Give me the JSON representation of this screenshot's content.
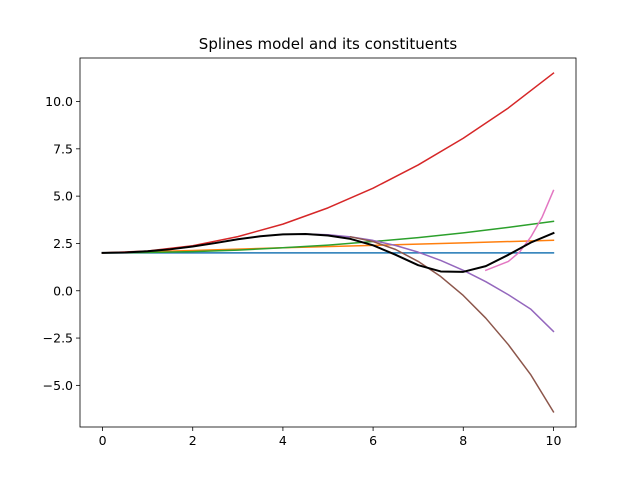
{
  "chart_data": {
    "type": "line",
    "title": "Splines model and its constituents",
    "xlabel": "",
    "ylabel": "",
    "xlim": [
      -0.5,
      10.5
    ],
    "ylim": [
      -7.2,
      12.3
    ],
    "xticks": [
      0,
      2,
      4,
      6,
      8,
      10
    ],
    "xtick_labels": [
      "0",
      "2",
      "4",
      "6",
      "8",
      "10"
    ],
    "yticks": [
      -5.0,
      -2.5,
      0.0,
      2.5,
      5.0,
      7.5,
      10.0
    ],
    "ytick_labels": [
      "−5.0",
      "−2.5",
      "0.0",
      "2.5",
      "5.0",
      "7.5",
      "10.0"
    ],
    "grid": false,
    "series": [
      {
        "color": "#1f77b4",
        "x": [
          0,
          2,
          4,
          6,
          8,
          10
        ],
        "y": [
          2.0,
          2.0,
          2.0,
          2.0,
          2.0,
          2.0
        ]
      },
      {
        "color": "#ff7f0e",
        "x": [
          0,
          2,
          4,
          6,
          8,
          10
        ],
        "y": [
          2.0,
          2.13,
          2.27,
          2.4,
          2.53,
          2.67
        ]
      },
      {
        "color": "#2ca02c",
        "x": [
          0,
          1,
          2,
          3,
          4,
          5,
          6,
          7,
          8,
          9,
          10
        ],
        "y": [
          2.0,
          2.02,
          2.07,
          2.15,
          2.27,
          2.41,
          2.6,
          2.81,
          3.06,
          3.35,
          3.67
        ]
      },
      {
        "color": "#d62728",
        "x": [
          0,
          1,
          2,
          3,
          4,
          5,
          6,
          7,
          8,
          9,
          10
        ],
        "y": [
          2.0,
          2.1,
          2.38,
          2.86,
          3.52,
          4.38,
          5.42,
          6.65,
          8.06,
          9.66,
          11.5
        ]
      },
      {
        "color": "#9467bd",
        "x": [
          4.5,
          5,
          5.5,
          6,
          6.5,
          7,
          7.5,
          8,
          8.5,
          9,
          9.5,
          10
        ],
        "y": [
          3.0,
          2.96,
          2.85,
          2.66,
          2.39,
          2.04,
          1.6,
          1.08,
          0.48,
          -0.21,
          -0.98,
          -2.15
        ]
      },
      {
        "color": "#8c564b",
        "x": [
          5.5,
          6,
          6.5,
          7,
          7.5,
          8,
          8.5,
          9,
          9.5,
          10
        ],
        "y": [
          2.85,
          2.6,
          2.18,
          1.55,
          0.75,
          -0.25,
          -1.45,
          -2.85,
          -4.45,
          -6.4
        ]
      },
      {
        "color": "#e377c2",
        "x": [
          8.5,
          9,
          9.25,
          9.5,
          9.75,
          10
        ],
        "y": [
          1.08,
          1.55,
          2.05,
          2.85,
          3.9,
          5.3
        ]
      },
      {
        "color": "#000000",
        "x": [
          0,
          0.5,
          1,
          1.5,
          2,
          2.5,
          3,
          3.5,
          4,
          4.5,
          5,
          5.5,
          6,
          6.5,
          7,
          7.5,
          8,
          8.5,
          9,
          9.5,
          10
        ],
        "y": [
          2.0,
          2.02,
          2.09,
          2.19,
          2.34,
          2.52,
          2.72,
          2.88,
          2.98,
          3.0,
          2.92,
          2.74,
          2.4,
          1.9,
          1.35,
          1.02,
          1.0,
          1.3,
          1.9,
          2.55,
          3.05
        ]
      }
    ]
  }
}
